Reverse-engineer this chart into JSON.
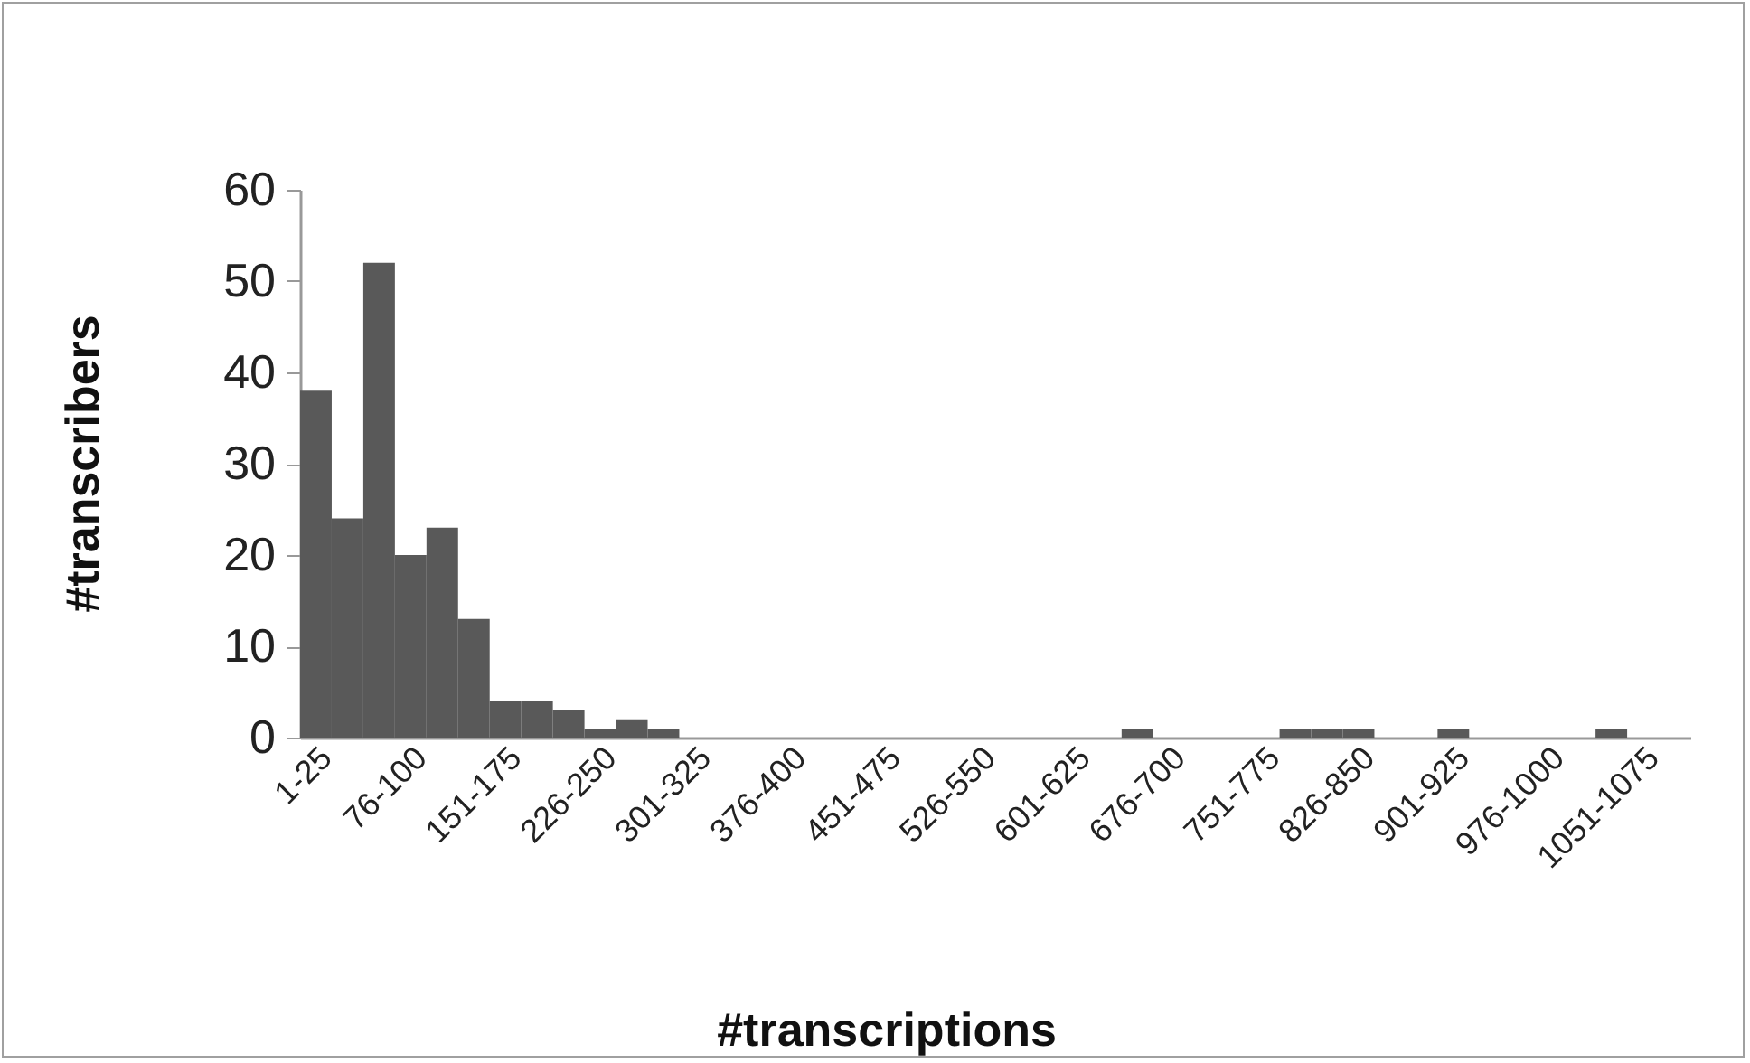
{
  "chart_data": {
    "type": "bar",
    "xlabel": "#transcriptions",
    "ylabel": "#transcribers",
    "categories": [
      "1-25",
      null,
      null,
      "76-100",
      null,
      null,
      "151-175",
      null,
      null,
      "226-250",
      null,
      null,
      "301-325",
      null,
      null,
      "376-400",
      null,
      null,
      "451-475",
      null,
      null,
      "526-550",
      null,
      null,
      "601-625",
      null,
      null,
      "676-700",
      null,
      null,
      "751-775",
      null,
      null,
      "826-850",
      null,
      null,
      "901-925",
      null,
      null,
      "976-1000",
      null,
      null,
      "1051-1075",
      null
    ],
    "values": [
      38,
      24,
      52,
      20,
      23,
      13,
      4,
      4,
      3,
      1,
      2,
      1,
      0,
      0,
      0,
      0,
      0,
      0,
      0,
      0,
      0,
      0,
      0,
      0,
      0,
      0,
      1,
      0,
      0,
      0,
      0,
      1,
      1,
      1,
      0,
      0,
      1,
      0,
      0,
      0,
      0,
      1,
      0,
      0
    ],
    "color": "#595959",
    "ylim": [
      0,
      60
    ],
    "yticks": [
      0,
      10,
      20,
      30,
      40,
      50,
      60
    ],
    "grid": false
  }
}
